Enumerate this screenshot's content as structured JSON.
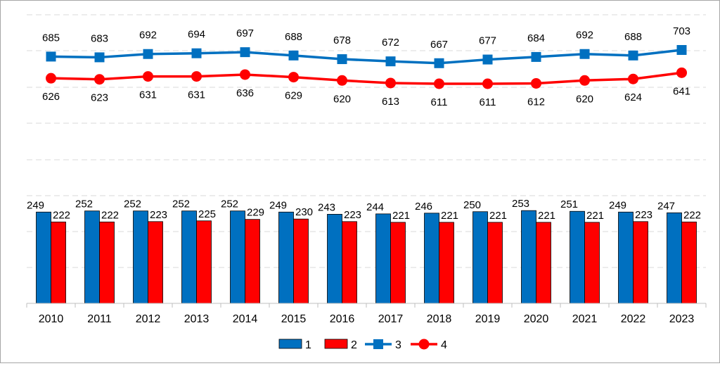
{
  "chart_data": {
    "type": "bar",
    "categories": [
      "2010",
      "2011",
      "2012",
      "2013",
      "2014",
      "2015",
      "2016",
      "2017",
      "2018",
      "2019",
      "2020",
      "2021",
      "2022",
      "2023"
    ],
    "series": [
      {
        "name": "1",
        "type": "bar",
        "color": "#0070c0",
        "values": [
          249,
          252,
          252,
          252,
          252,
          249,
          243,
          244,
          246,
          250,
          253,
          251,
          249,
          247
        ]
      },
      {
        "name": "2",
        "type": "bar",
        "color": "#ff0000",
        "values": [
          222,
          222,
          223,
          225,
          229,
          230,
          223,
          221,
          221,
          221,
          221,
          221,
          223,
          222
        ]
      },
      {
        "name": "3",
        "type": "line",
        "marker": "square",
        "color": "#0070c0",
        "values": [
          685,
          683,
          692,
          694,
          697,
          688,
          678,
          672,
          667,
          677,
          684,
          692,
          688,
          703
        ]
      },
      {
        "name": "4",
        "type": "line",
        "marker": "circle",
        "color": "#ff0000",
        "values": [
          626,
          623,
          631,
          631,
          636,
          629,
          620,
          613,
          611,
          611,
          612,
          620,
          624,
          641
        ]
      }
    ],
    "grid": true,
    "legend_position": "bottom-center",
    "value_labels": true
  }
}
